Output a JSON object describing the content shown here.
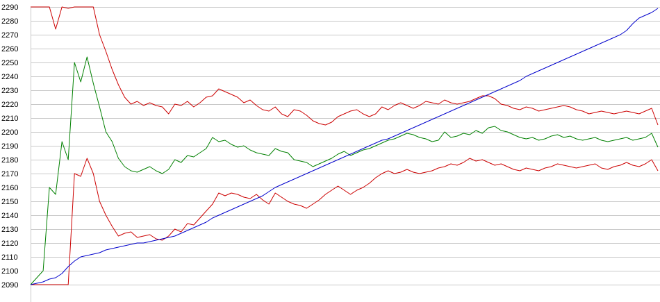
{
  "chart_data": {
    "type": "line",
    "title": "",
    "xlabel": "",
    "ylabel": "",
    "ylim": [
      2090,
      2290
    ],
    "y_ticks": [
      2090,
      2100,
      2110,
      2120,
      2130,
      2140,
      2150,
      2160,
      2170,
      2180,
      2190,
      2200,
      2210,
      2220,
      2230,
      2240,
      2250,
      2260,
      2270,
      2280,
      2290
    ],
    "grid": true,
    "legend": "none",
    "x": [
      0,
      2,
      3,
      4,
      5,
      6,
      7,
      8,
      9,
      10,
      11,
      12,
      13,
      14,
      15,
      16,
      17,
      18,
      19,
      20,
      21,
      22,
      23,
      24,
      25,
      26,
      27,
      28,
      29,
      30,
      31,
      32,
      33,
      34,
      35,
      36,
      37,
      38,
      39,
      40,
      41,
      42,
      43,
      44,
      45,
      46,
      47,
      48,
      49,
      50,
      51,
      52,
      53,
      54,
      55,
      56,
      57,
      58,
      59,
      60,
      61,
      62,
      63,
      64,
      65,
      66,
      67,
      68,
      69,
      70,
      71,
      72,
      73,
      74,
      75,
      76,
      77,
      78,
      79,
      80,
      81,
      82,
      83,
      84,
      85,
      86,
      87,
      88,
      89,
      90,
      91,
      92,
      93,
      94,
      95,
      96,
      97,
      98,
      99,
      100
    ],
    "series": [
      {
        "color": "#cc0000",
        "values": [
          2290,
          2290,
          2290,
          2274,
          2290,
          2289,
          2290,
          2290,
          2290,
          2290,
          2270,
          2258,
          2245,
          2234,
          2225,
          2220,
          2222,
          2219,
          2221,
          2219,
          2218,
          2213,
          2220,
          2219,
          2222,
          2218,
          2221,
          2225,
          2226,
          2231,
          2229,
          2227,
          2225,
          2221,
          2223,
          2219,
          2216,
          2215,
          2218,
          2213,
          2211,
          2216,
          2215,
          2212,
          2208,
          2206,
          2205,
          2207,
          2211,
          2213,
          2215,
          2216,
          2213,
          2211,
          2213,
          2218,
          2216,
          2219,
          2221,
          2219,
          2217,
          2219,
          2222,
          2221,
          2220,
          2223,
          2221,
          2220,
          2221,
          2222,
          2224,
          2226,
          2226,
          2224,
          2220,
          2219,
          2217,
          2216,
          2218,
          2217,
          2215,
          2216,
          2217,
          2218,
          2219,
          2218,
          2216,
          2215,
          2213,
          2214,
          2215,
          2214,
          2213,
          2214,
          2215,
          2214,
          2213,
          2215,
          2217,
          2205
        ]
      },
      {
        "color": "#008000",
        "values": [
          2090,
          2100,
          2160,
          2155,
          2193,
          2180,
          2250,
          2236,
          2254,
          2235,
          2218,
          2200,
          2193,
          2181,
          2175,
          2172,
          2171,
          2173,
          2175,
          2172,
          2170,
          2173,
          2180,
          2178,
          2183,
          2182,
          2185,
          2188,
          2196,
          2193,
          2194,
          2191,
          2189,
          2190,
          2187,
          2185,
          2184,
          2183,
          2188,
          2186,
          2185,
          2180,
          2179,
          2178,
          2175,
          2177,
          2179,
          2181,
          2184,
          2186,
          2183,
          2185,
          2187,
          2188,
          2190,
          2192,
          2194,
          2195,
          2197,
          2199,
          2198,
          2196,
          2195,
          2193,
          2194,
          2200,
          2196,
          2197,
          2199,
          2198,
          2201,
          2199,
          2203,
          2204,
          2201,
          2200,
          2198,
          2196,
          2195,
          2196,
          2194,
          2195,
          2197,
          2198,
          2196,
          2197,
          2195,
          2194,
          2195,
          2196,
          2194,
          2193,
          2194,
          2195,
          2196,
          2194,
          2195,
          2196,
          2199,
          2189
        ]
      },
      {
        "color": "#cc0000",
        "values": [
          2090,
          2090,
          2090,
          2090,
          2090,
          2090,
          2170,
          2168,
          2181,
          2170,
          2150,
          2140,
          2132,
          2125,
          2127,
          2128,
          2124,
          2125,
          2126,
          2123,
          2122,
          2125,
          2130,
          2128,
          2134,
          2133,
          2138,
          2143,
          2148,
          2156,
          2154,
          2156,
          2155,
          2153,
          2152,
          2155,
          2151,
          2148,
          2156,
          2153,
          2150,
          2148,
          2147,
          2145,
          2148,
          2151,
          2155,
          2158,
          2161,
          2158,
          2155,
          2158,
          2160,
          2163,
          2167,
          2170,
          2172,
          2170,
          2171,
          2173,
          2171,
          2170,
          2171,
          2172,
          2174,
          2175,
          2177,
          2176,
          2178,
          2181,
          2179,
          2180,
          2178,
          2176,
          2177,
          2175,
          2173,
          2172,
          2174,
          2173,
          2172,
          2174,
          2175,
          2177,
          2176,
          2175,
          2174,
          2175,
          2176,
          2177,
          2174,
          2173,
          2175,
          2176,
          2178,
          2176,
          2175,
          2177,
          2180,
          2172
        ]
      },
      {
        "color": "#0000cc",
        "values": [
          2090,
          2092,
          2094,
          2095,
          2098,
          2103,
          2107,
          2110,
          2111,
          2112,
          2113,
          2115,
          2116,
          2117,
          2118,
          2119,
          2120,
          2120,
          2121,
          2122,
          2123,
          2124,
          2125,
          2127,
          2129,
          2131,
          2133,
          2135,
          2138,
          2140,
          2142,
          2144,
          2146,
          2148,
          2150,
          2152,
          2154,
          2157,
          2160,
          2162,
          2164,
          2166,
          2168,
          2170,
          2172,
          2174,
          2176,
          2178,
          2180,
          2182,
          2184,
          2186,
          2188,
          2190,
          2192,
          2194,
          2195,
          2197,
          2199,
          2201,
          2203,
          2205,
          2207,
          2209,
          2211,
          2213,
          2215,
          2217,
          2219,
          2221,
          2223,
          2225,
          2227,
          2229,
          2231,
          2233,
          2235,
          2237,
          2240,
          2242,
          2244,
          2246,
          2248,
          2250,
          2252,
          2254,
          2256,
          2258,
          2260,
          2262,
          2264,
          2266,
          2268,
          2270,
          2273,
          2278,
          2282,
          2284,
          2286,
          2289
        ]
      }
    ]
  }
}
